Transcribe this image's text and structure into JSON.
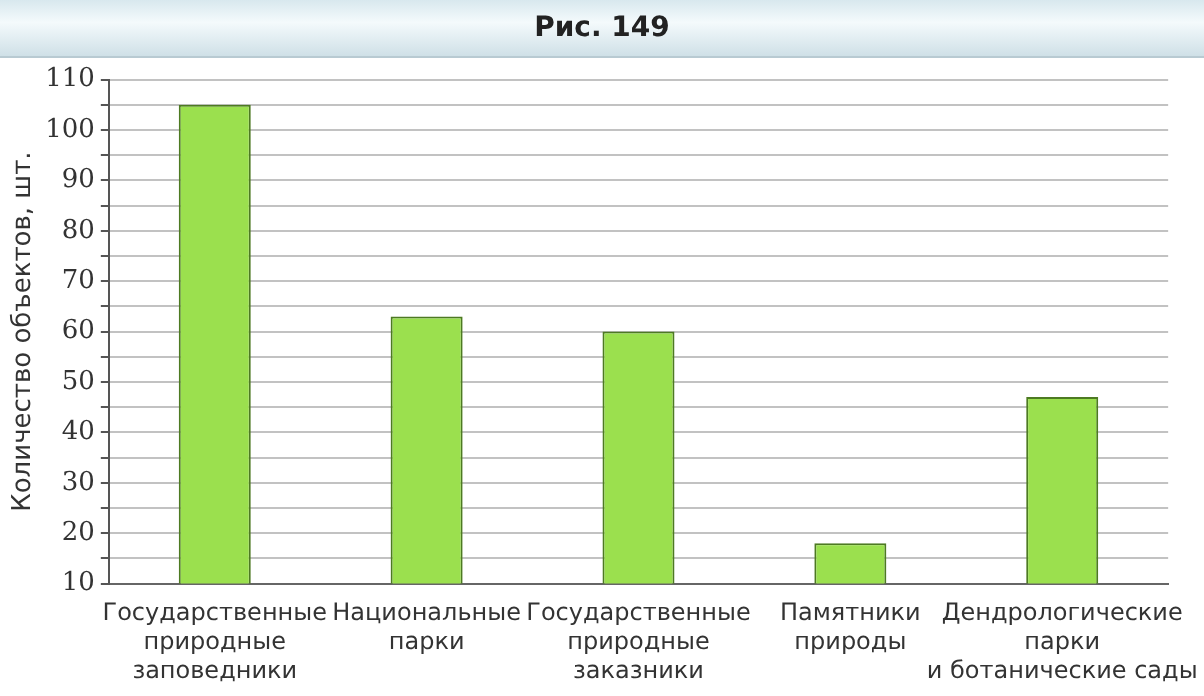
{
  "chart_data": {
    "type": "bar",
    "title": "Рис. 149",
    "ylabel": "Количество объектов, шт.",
    "categories": [
      "Государственные\nприродные\nзаповедники",
      "Национальные\nпарки",
      "Государственные\nприродные\nзаказники",
      "Памятники\nприроды",
      "Дендрологические\nпарки\nи ботанические сады"
    ],
    "values": [
      105,
      63,
      60,
      18,
      47
    ],
    "color": "#9be04e",
    "ylim": [
      10,
      110
    ],
    "yticks": [
      10,
      {
        "value": 15,
        "label": null
      },
      20,
      {
        "value": 25,
        "label": null
      },
      30,
      {
        "value": 35,
        "label": null
      },
      40,
      {
        "value": 45,
        "label": null
      },
      50,
      {
        "value": 55,
        "label": null
      },
      60,
      {
        "value": 65,
        "label": null
      },
      70,
      {
        "value": 75,
        "label": null
      },
      80,
      {
        "value": 85,
        "label": null
      },
      90,
      {
        "value": 95,
        "label": null
      },
      100,
      {
        "value": 105,
        "label": null
      },
      110
    ],
    "grid": "y",
    "legend": false
  }
}
